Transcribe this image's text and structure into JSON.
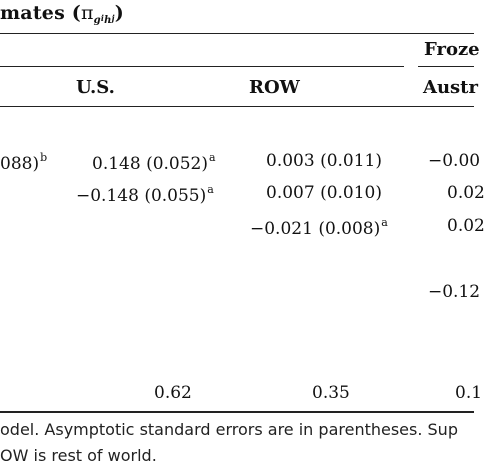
{
  "title": {
    "text_prefix": "mates (",
    "symbol": "π",
    "sub_g": "g",
    "sub_i": "i",
    "sub_h": "h",
    "sub_j": "j",
    "text_suffix": ")"
  },
  "header": {
    "group_label": "Froze",
    "columns": [
      "U.S.",
      "ROW",
      "Austr"
    ]
  },
  "rows": [
    {
      "left": "088)",
      "left_sup": "b",
      "us": "0.148 (0.052)",
      "us_sup": "a",
      "row": "0.003 (0.011)",
      "row_sup": "",
      "aus": "−0.00"
    },
    {
      "left": "",
      "left_sup": "",
      "us": "−0.148 (0.055)",
      "us_sup": "a",
      "row": "0.007 (0.010)",
      "row_sup": "",
      "aus": "0.02"
    },
    {
      "left": "",
      "left_sup": "",
      "us": "",
      "us_sup": "",
      "row": "−0.021 (0.008)",
      "row_sup": "a",
      "aus": "0.02"
    },
    {
      "left": "",
      "left_sup": "",
      "us": "",
      "us_sup": "",
      "row": "",
      "row_sup": "",
      "aus": "−0.12"
    }
  ],
  "share_row": {
    "us": "0.62",
    "row": "0.35",
    "aus": "0.1"
  },
  "footnote": {
    "line1": "odel. Asymptotic standard errors are in parentheses. Sup",
    "line2": "OW is rest of world."
  }
}
